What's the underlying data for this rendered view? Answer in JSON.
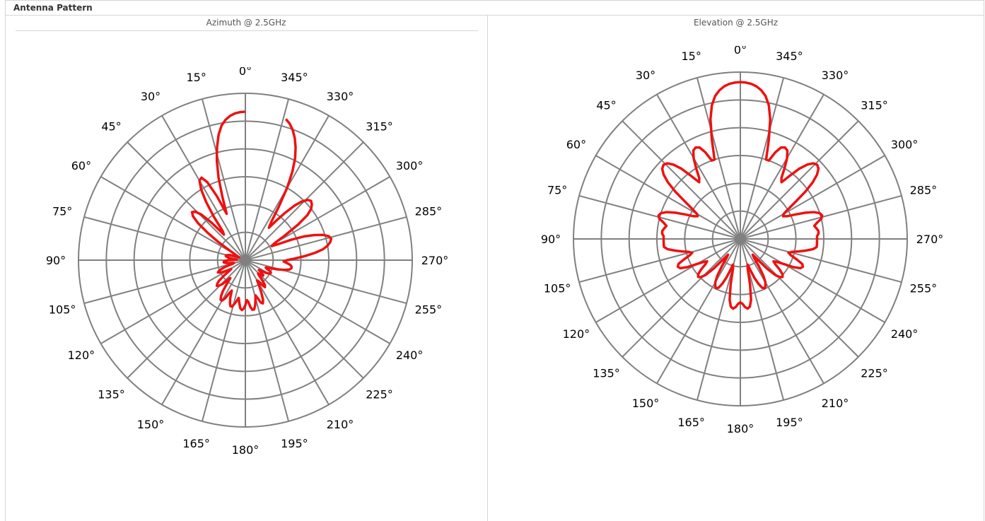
{
  "page": {
    "title": "Antenna Pattern"
  },
  "columns": [
    {
      "label": "Azimuth @ 2.5GHz"
    },
    {
      "label": "Elevation @ 2.5GHz"
    }
  ],
  "colors": {
    "grid": "#808080",
    "trace": "#ee1111",
    "border": "#d6d6d6"
  },
  "chart_data": [
    {
      "type": "polar-line",
      "title": "Azimuth @ 2.5GHz",
      "angle_labels": [
        "0°",
        "345°",
        "330°",
        "315°",
        "300°",
        "285°",
        "270°",
        "255°",
        "240°",
        "225°",
        "210°",
        "195°",
        "180°",
        "165°",
        "150°",
        "135°",
        "120°",
        "105°",
        "90°",
        "75°",
        "60°",
        "45°",
        "30°",
        "15°"
      ],
      "angle_values": [
        0,
        345,
        330,
        315,
        300,
        285,
        270,
        255,
        240,
        225,
        210,
        195,
        180,
        165,
        150,
        135,
        120,
        105,
        90,
        75,
        60,
        45,
        30,
        15
      ],
      "rings": 6,
      "r_range": [
        0,
        1
      ],
      "series": [
        {
          "angle_deg": [
            0,
            2,
            4,
            6,
            8,
            10,
            12,
            14,
            15,
            16,
            18,
            20,
            22,
            24,
            26,
            28,
            30,
            32,
            34,
            36,
            38,
            40,
            42,
            44,
            46,
            48,
            50,
            52,
            54,
            56,
            58,
            60,
            62,
            64,
            66,
            68,
            70,
            72,
            74,
            76,
            78,
            80,
            82,
            84,
            86,
            88,
            90,
            92,
            94,
            96,
            98,
            100,
            102,
            104,
            106,
            108,
            110,
            112,
            114,
            116,
            118,
            120,
            122,
            124,
            126,
            128,
            130,
            132,
            134,
            136,
            138,
            140,
            142,
            144,
            146,
            148,
            150,
            152,
            154,
            156,
            158,
            160,
            162,
            164,
            166,
            168,
            170,
            172,
            174,
            176,
            178,
            180,
            182,
            184,
            186,
            188,
            190,
            192,
            194,
            196,
            198,
            200,
            202,
            204,
            206,
            208,
            210,
            212,
            214,
            216,
            218,
            220,
            222,
            224,
            226,
            228,
            230,
            232,
            234,
            236,
            238,
            240,
            242,
            244,
            246,
            248,
            250,
            252,
            254,
            256,
            258,
            260,
            262,
            264,
            266,
            268,
            270,
            272,
            274,
            276,
            278,
            280,
            282,
            284,
            286,
            288,
            290,
            292,
            294,
            296,
            298,
            300,
            302,
            304,
            306,
            308,
            310,
            312,
            314,
            316,
            318,
            320,
            322,
            324,
            326,
            328,
            330,
            332,
            334,
            336,
            338,
            340,
            342,
            344,
            346,
            348,
            350,
            352,
            354,
            356,
            358
          ],
          "r": [
            0.89,
            0.888,
            0.882,
            0.87,
            0.85,
            0.82,
            0.77,
            0.7,
            0.66,
            0.62,
            0.52,
            0.4,
            0.3,
            0.42,
            0.52,
            0.56,
            0.55,
            0.5,
            0.42,
            0.32,
            0.22,
            0.2,
            0.3,
            0.38,
            0.42,
            0.43,
            0.41,
            0.36,
            0.28,
            0.2,
            0.12,
            0.08,
            0.06,
            0.05,
            0.04,
            0.05,
            0.08,
            0.1,
            0.11,
            0.12,
            0.12,
            0.11,
            0.1,
            0.08,
            0.06,
            0.05,
            0.1,
            0.12,
            0.13,
            0.13,
            0.12,
            0.1,
            0.08,
            0.07,
            0.08,
            0.12,
            0.15,
            0.17,
            0.18,
            0.17,
            0.15,
            0.12,
            0.1,
            0.12,
            0.16,
            0.2,
            0.22,
            0.23,
            0.22,
            0.2,
            0.16,
            0.14,
            0.18,
            0.23,
            0.26,
            0.28,
            0.28,
            0.26,
            0.22,
            0.2,
            0.24,
            0.27,
            0.29,
            0.29,
            0.27,
            0.25,
            0.23,
            0.26,
            0.29,
            0.3,
            0.29,
            0.27,
            0.24,
            0.25,
            0.28,
            0.3,
            0.3,
            0.28,
            0.25,
            0.22,
            0.24,
            0.27,
            0.28,
            0.26,
            0.22,
            0.18,
            0.14,
            0.15,
            0.18,
            0.2,
            0.19,
            0.16,
            0.12,
            0.11,
            0.13,
            0.14,
            0.14,
            0.12,
            0.1,
            0.11,
            0.14,
            0.16,
            0.17,
            0.17,
            0.16,
            0.14,
            0.13,
            0.15,
            0.2,
            0.24,
            0.27,
            0.28,
            0.28,
            0.27,
            0.25,
            0.23,
            0.25,
            0.3,
            0.36,
            0.42,
            0.47,
            0.5,
            0.52,
            0.53,
            0.52,
            0.49,
            0.44,
            0.38,
            0.3,
            0.22,
            0.18,
            0.2,
            0.28,
            0.38,
            0.46,
            0.5,
            0.52,
            0.53,
            0.52,
            0.49,
            0.44,
            0.37,
            0.3,
            0.24,
            0.28,
            0.38,
            0.5,
            0.6,
            0.68,
            0.74,
            0.79,
            0.83,
            0.86,
            0.88
          ]
        }
      ]
    },
    {
      "type": "polar-line",
      "title": "Elevation @ 2.5GHz",
      "angle_labels": [
        "0°",
        "345°",
        "330°",
        "315°",
        "300°",
        "285°",
        "270°",
        "255°",
        "240°",
        "225°",
        "210°",
        "195°",
        "180°",
        "165°",
        "150°",
        "135°",
        "120°",
        "105°",
        "90°",
        "75°",
        "60°",
        "45°",
        "30°",
        "15°"
      ],
      "angle_values": [
        0,
        345,
        330,
        315,
        300,
        285,
        270,
        255,
        240,
        225,
        210,
        195,
        180,
        165,
        150,
        135,
        120,
        105,
        90,
        75,
        60,
        45,
        30,
        15
      ],
      "rings": 6,
      "r_range": [
        0,
        1
      ],
      "series": [
        {
          "angle_deg": [
            0,
            2,
            4,
            6,
            8,
            10,
            12,
            14,
            16,
            18,
            20,
            22,
            24,
            26,
            28,
            30,
            32,
            34,
            36,
            38,
            40,
            42,
            44,
            46,
            48,
            50,
            52,
            54,
            56,
            58,
            60,
            62,
            64,
            66,
            68,
            70,
            72,
            74,
            76,
            78,
            80,
            82,
            84,
            86,
            88,
            90,
            92,
            94,
            96,
            98,
            100,
            102,
            104,
            106,
            108,
            110,
            112,
            114,
            116,
            118,
            120,
            122,
            124,
            126,
            128,
            130,
            132,
            134,
            136,
            138,
            140,
            142,
            144,
            146,
            148,
            150,
            152,
            154,
            156,
            158,
            160,
            162,
            164,
            166,
            168,
            170,
            172,
            174,
            176,
            178,
            180,
            182,
            184,
            186,
            188,
            190,
            192,
            194,
            196,
            198,
            200,
            202,
            204,
            206,
            208,
            210,
            212,
            214,
            216,
            218,
            220,
            222,
            224,
            226,
            228,
            230,
            232,
            234,
            236,
            238,
            240,
            242,
            244,
            246,
            248,
            250,
            252,
            254,
            256,
            258,
            260,
            262,
            264,
            266,
            268,
            270,
            272,
            274,
            276,
            278,
            280,
            282,
            284,
            286,
            288,
            290,
            292,
            294,
            296,
            298,
            300,
            302,
            304,
            306,
            308,
            310,
            312,
            314,
            316,
            318,
            320,
            322,
            324,
            326,
            328,
            330,
            332,
            334,
            336,
            338,
            340,
            342,
            344,
            346,
            348,
            350,
            352,
            354,
            356,
            358
          ],
          "r": [
            0.94,
            0.938,
            0.932,
            0.92,
            0.9,
            0.87,
            0.82,
            0.74,
            0.62,
            0.5,
            0.5,
            0.56,
            0.6,
            0.61,
            0.6,
            0.56,
            0.5,
            0.44,
            0.42,
            0.48,
            0.55,
            0.6,
            0.63,
            0.64,
            0.63,
            0.6,
            0.55,
            0.48,
            0.4,
            0.34,
            0.3,
            0.29,
            0.31,
            0.36,
            0.42,
            0.47,
            0.5,
            0.51,
            0.5,
            0.47,
            0.45,
            0.46,
            0.47,
            0.47,
            0.46,
            0.46,
            0.46,
            0.46,
            0.46,
            0.44,
            0.4,
            0.36,
            0.32,
            0.3,
            0.32,
            0.36,
            0.4,
            0.41,
            0.4,
            0.36,
            0.3,
            0.26,
            0.24,
            0.26,
            0.3,
            0.33,
            0.34,
            0.33,
            0.3,
            0.24,
            0.16,
            0.12,
            0.14,
            0.2,
            0.26,
            0.3,
            0.32,
            0.33,
            0.32,
            0.29,
            0.25,
            0.2,
            0.16,
            0.18,
            0.28,
            0.37,
            0.41,
            0.42,
            0.41,
            0.39,
            0.38,
            0.39,
            0.41,
            0.42,
            0.41,
            0.37,
            0.28,
            0.18,
            0.16,
            0.2,
            0.25,
            0.29,
            0.32,
            0.33,
            0.32,
            0.3,
            0.26,
            0.2,
            0.14,
            0.12,
            0.16,
            0.24,
            0.3,
            0.33,
            0.34,
            0.33,
            0.3,
            0.26,
            0.24,
            0.26,
            0.3,
            0.36,
            0.4,
            0.41,
            0.4,
            0.36,
            0.32,
            0.3,
            0.32,
            0.36,
            0.4,
            0.44,
            0.46,
            0.46,
            0.46,
            0.46,
            0.46,
            0.47,
            0.47,
            0.46,
            0.45,
            0.47,
            0.5,
            0.51,
            0.5,
            0.47,
            0.42,
            0.36,
            0.31,
            0.29,
            0.3,
            0.34,
            0.4,
            0.48,
            0.55,
            0.6,
            0.63,
            0.64,
            0.63,
            0.6,
            0.55,
            0.48,
            0.42,
            0.44,
            0.5,
            0.56,
            0.6,
            0.61,
            0.6,
            0.56,
            0.5,
            0.5,
            0.62,
            0.74,
            0.82,
            0.87,
            0.9,
            0.92,
            0.932,
            0.938
          ]
        }
      ]
    }
  ]
}
